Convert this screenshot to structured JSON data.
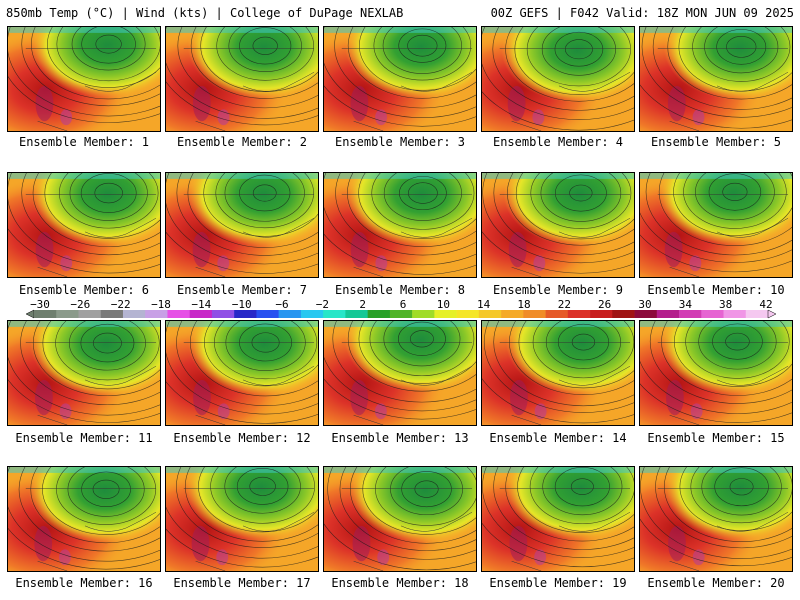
{
  "header": {
    "left_title": "850mb Temp (°C) | Wind (kts) | College of DuPage NEXLAB",
    "right_title": "00Z GEFS | F042 Valid: 18Z MON JUN 09 2025"
  },
  "panels": [
    {
      "caption": "Ensemble Member: 1"
    },
    {
      "caption": "Ensemble Member: 2"
    },
    {
      "caption": "Ensemble Member: 3"
    },
    {
      "caption": "Ensemble Member: 4"
    },
    {
      "caption": "Ensemble Member: 5"
    },
    {
      "caption": "Ensemble Member: 6"
    },
    {
      "caption": "Ensemble Member: 7"
    },
    {
      "caption": "Ensemble Member: 8"
    },
    {
      "caption": "Ensemble Member: 9"
    },
    {
      "caption": "Ensemble Member: 10"
    },
    {
      "caption": "Ensemble Member: 11"
    },
    {
      "caption": "Ensemble Member: 12"
    },
    {
      "caption": "Ensemble Member: 13"
    },
    {
      "caption": "Ensemble Member: 14"
    },
    {
      "caption": "Ensemble Member: 15"
    },
    {
      "caption": "Ensemble Member: 16"
    },
    {
      "caption": "Ensemble Member: 17"
    },
    {
      "caption": "Ensemble Member: 18"
    },
    {
      "caption": "Ensemble Member: 19"
    },
    {
      "caption": "Ensemble Member: 20"
    }
  ],
  "colorbar": {
    "labels": [
      "-30",
      "-26",
      "-22",
      "-18",
      "-14",
      "-10",
      "-6",
      "-2",
      "2",
      "6",
      "10",
      "14",
      "18",
      "22",
      "26",
      "30",
      "34",
      "38",
      "42"
    ],
    "colors": [
      "#6e7f6e",
      "#8a9a8a",
      "#a0a0a0",
      "#7a7a7a",
      "#b4b4d2",
      "#c8a0e6",
      "#e650e6",
      "#c828c8",
      "#9050e6",
      "#2828c8",
      "#2850f0",
      "#2896f0",
      "#28c8f0",
      "#28e6c8",
      "#14c896",
      "#28a028",
      "#50b428",
      "#a0dc28",
      "#e6f028",
      "#f5e628",
      "#f5c828",
      "#f5aa28",
      "#f08c28",
      "#e65a28",
      "#dc3228",
      "#c81e1e",
      "#a01414",
      "#8c0a3c",
      "#b41e8c",
      "#d23cb4",
      "#e664d2",
      "#f096e6",
      "#f5c8f0"
    ]
  }
}
